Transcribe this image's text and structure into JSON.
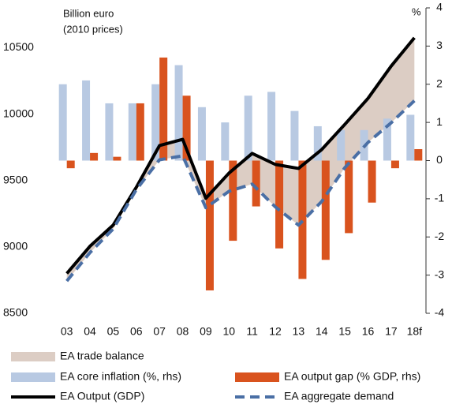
{
  "chart_data": {
    "type": "bar_line",
    "y_label": [
      "Billion euro",
      "(2010 prices)"
    ],
    "y2_label": "%",
    "categories": [
      "03",
      "04",
      "05",
      "06",
      "07",
      "08",
      "09",
      "10",
      "11",
      "12",
      "13",
      "14",
      "15",
      "16",
      "17",
      "18f"
    ],
    "ylim": [
      8500,
      10800
    ],
    "yticks": [
      8500,
      9000,
      9500,
      10000,
      10500
    ],
    "y2lim": [
      -4,
      4
    ],
    "y2ticks": [
      -4,
      -3,
      -2,
      -1,
      0,
      1,
      2,
      3,
      4
    ],
    "series": [
      {
        "name": "EA trade balance",
        "type": "area",
        "color": "#dccdc4"
      },
      {
        "name": "EA core inflation (%, rhs)",
        "type": "bar",
        "axis": "y2",
        "color": "#b8c9e2",
        "values": [
          2.0,
          2.1,
          1.5,
          1.5,
          2.0,
          2.5,
          1.4,
          1.0,
          1.7,
          1.8,
          1.3,
          0.9,
          0.8,
          0.8,
          1.1,
          1.2
        ]
      },
      {
        "name": "EA output gap (% GDP, rhs)",
        "type": "bar",
        "axis": "y2",
        "color": "#d9531e",
        "values": [
          -0.2,
          0.2,
          0.1,
          1.5,
          2.7,
          1.7,
          -3.4,
          -2.1,
          -1.2,
          -2.3,
          -3.1,
          -2.6,
          -1.9,
          -1.1,
          -0.2,
          0.3
        ]
      },
      {
        "name": "EA Output (GDP)",
        "type": "line",
        "color": "#000000",
        "dashed": false,
        "values": [
          8800,
          9005,
          9164,
          9449,
          9763,
          9810,
          9366,
          9556,
          9704,
          9621,
          9591,
          9733,
          9923,
          10119,
          10362,
          10575
        ]
      },
      {
        "name": "EA aggregate demand",
        "type": "line",
        "color": "#4a6fa5",
        "dashed": true,
        "values": [
          8743,
          8957,
          9135,
          9431,
          9656,
          9686,
          9295,
          9419,
          9473,
          9301,
          9164,
          9342,
          9597,
          9787,
          9935,
          10101
        ]
      }
    ]
  }
}
